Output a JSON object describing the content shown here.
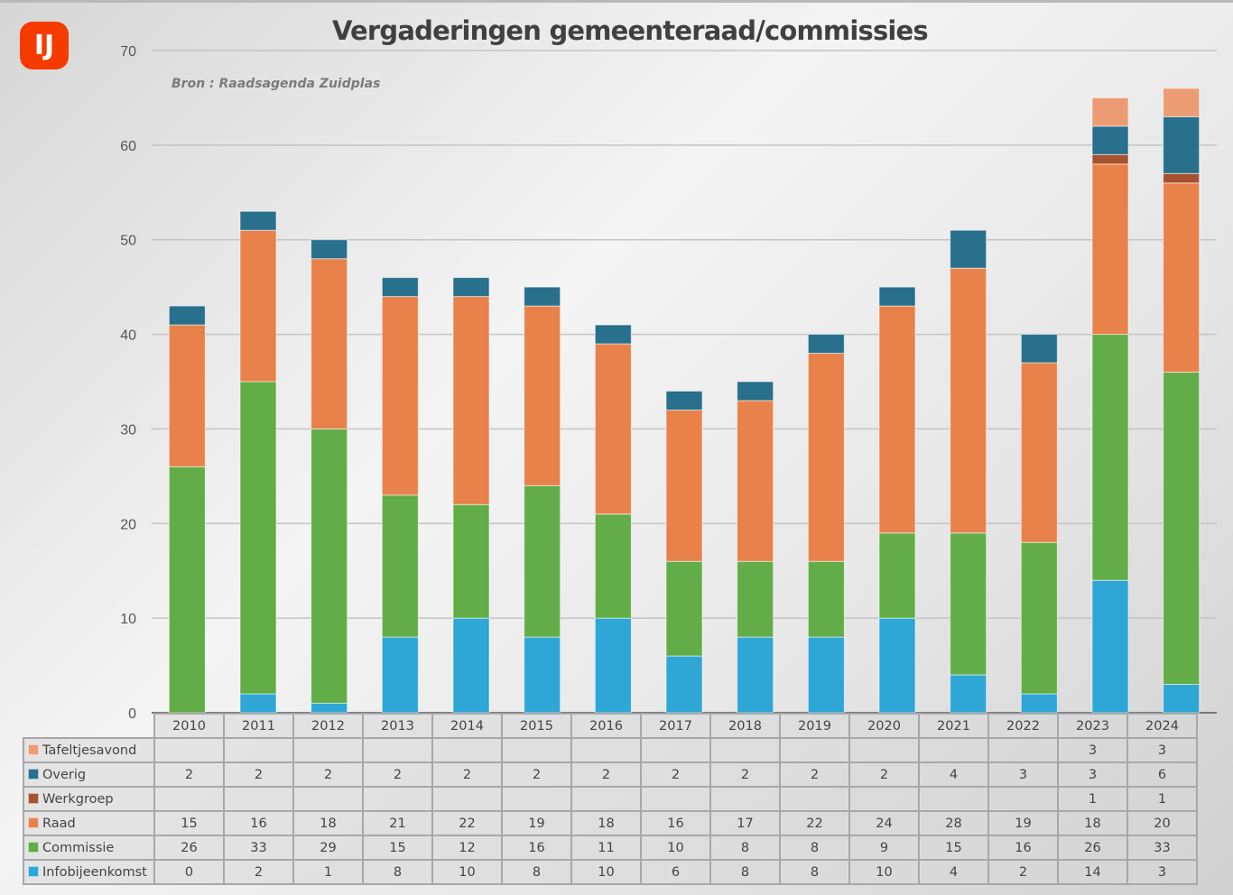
{
  "logo": {
    "glyph": "IJ",
    "icon": "ij-logo-icon",
    "color": "#f53b00"
  },
  "chart_data": {
    "type": "bar",
    "stacked": true,
    "title": "Vergaderingen gemeenteraad/commissies",
    "subtitle": "Bron : Raadsagenda Zuidplas",
    "xlabel": "",
    "ylabel": "",
    "ylim": [
      0,
      70
    ],
    "yticks": [
      0,
      10,
      20,
      30,
      40,
      50,
      60,
      70
    ],
    "grid": true,
    "legend": "data-table-below",
    "categories": [
      "2010",
      "2011",
      "2012",
      "2013",
      "2014",
      "2015",
      "2016",
      "2017",
      "2018",
      "2019",
      "2020",
      "2021",
      "2022",
      "2023",
      "2024"
    ],
    "series": [
      {
        "name": "Infobijeenkomst",
        "color": "#2ea6d6",
        "values": [
          0,
          2,
          1,
          8,
          10,
          8,
          10,
          6,
          8,
          8,
          10,
          4,
          2,
          14,
          3
        ]
      },
      {
        "name": "Commissie",
        "color": "#62ad47",
        "values": [
          26,
          33,
          29,
          15,
          12,
          16,
          11,
          10,
          8,
          8,
          9,
          15,
          16,
          26,
          33
        ]
      },
      {
        "name": "Raad",
        "color": "#e8824a",
        "values": [
          15,
          16,
          18,
          21,
          22,
          19,
          18,
          16,
          17,
          22,
          24,
          28,
          19,
          18,
          20
        ]
      },
      {
        "name": "Werkgroep",
        "color": "#a4532e",
        "values": [
          null,
          null,
          null,
          null,
          null,
          null,
          null,
          null,
          null,
          null,
          null,
          null,
          null,
          1,
          1
        ]
      },
      {
        "name": "Overig",
        "color": "#28708c",
        "values": [
          2,
          2,
          2,
          2,
          2,
          2,
          2,
          2,
          2,
          2,
          2,
          4,
          3,
          3,
          6
        ]
      },
      {
        "name": "Tafeltjesavond",
        "color": "#ec9c72",
        "values": [
          null,
          null,
          null,
          null,
          null,
          null,
          null,
          null,
          null,
          null,
          null,
          null,
          null,
          3,
          3
        ]
      }
    ],
    "table_row_order": [
      "Tafeltjesavond",
      "Overig",
      "Werkgroep",
      "Raad",
      "Commissie",
      "Infobijeenkomst"
    ]
  }
}
